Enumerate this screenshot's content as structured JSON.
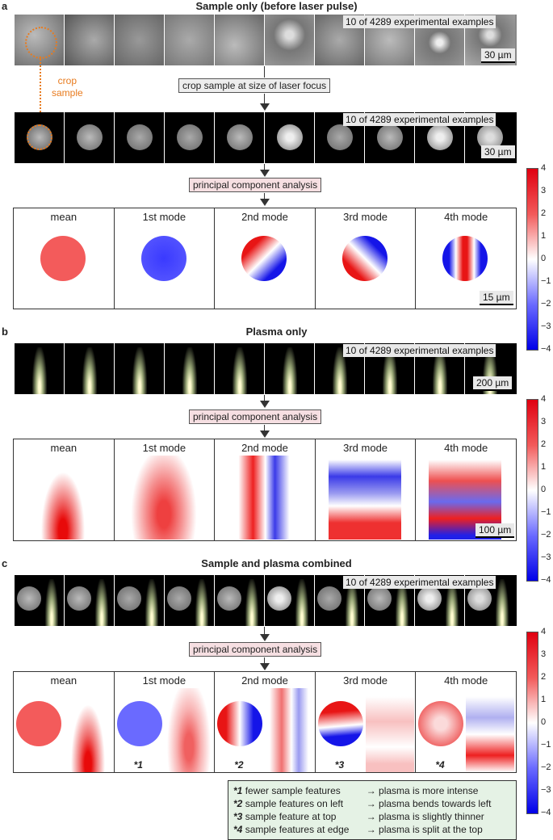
{
  "panel_a": {
    "letter": "a",
    "title": "Sample only (before laser pulse)",
    "examples_tag": "10 of 4289 experimental examples",
    "scale_top": "30 µm",
    "crop_label": "crop sample at size of laser focus",
    "crop_side_label_1": "crop",
    "crop_side_label_2": "sample",
    "examples_tag_2": "10 of 4289 experimental examples",
    "scale_crop": "30 µm",
    "pca_label": "principal component analysis",
    "modes": [
      "mean",
      "1st mode",
      "2nd mode",
      "3rd mode",
      "4th mode"
    ],
    "scale_modes": "15 µm"
  },
  "panel_b": {
    "letter": "b",
    "title": "Plasma only",
    "examples_tag": "10 of 4289 experimental examples",
    "scale_top": "200 µm",
    "pca_label": "principal component analysis",
    "modes": [
      "mean",
      "1st mode",
      "2nd mode",
      "3rd mode",
      "4th mode"
    ],
    "scale_modes": "100 µm"
  },
  "panel_c": {
    "letter": "c",
    "title": "Sample and plasma combined",
    "examples_tag": "10 of 4289 experimental examples",
    "pca_label": "principal component analysis",
    "modes": [
      "mean",
      "1st mode",
      "2nd mode",
      "3rd mode",
      "4th mode"
    ],
    "stars": [
      "*1",
      "*2",
      "*3",
      "*4"
    ]
  },
  "colorbar_ticks": [
    "4",
    "3",
    "2",
    "1",
    "0",
    "−1",
    "−2",
    "−3",
    "−4"
  ],
  "legend": [
    {
      "key": "*1",
      "left": "fewer sample features",
      "right": "→ plasma is more intense"
    },
    {
      "key": "*2",
      "left": "sample features on left",
      "right": "→ plasma bends towards left"
    },
    {
      "key": "*3",
      "left": "sample feature at top",
      "right": "→ plasma is slightly thinner"
    },
    {
      "key": "*4",
      "left": "sample features at edge",
      "right": "→ plasma is split at the top"
    }
  ]
}
